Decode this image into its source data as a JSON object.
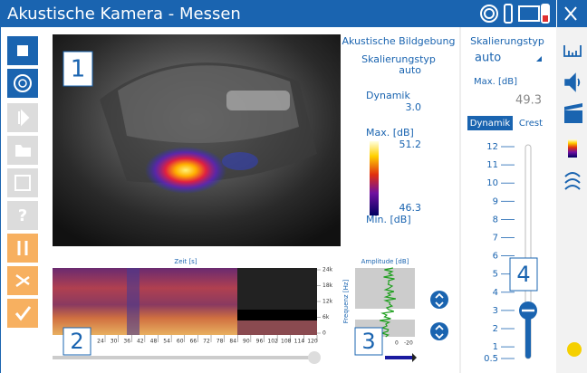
{
  "title_bar": {
    "title": "Akustische Kamera - Messen"
  },
  "image_panel": {
    "label": "1"
  },
  "imaging_info": {
    "heading": "Akustische Bildgebung",
    "scaling_type_label": "Skalierungstyp",
    "scaling_type": "auto",
    "dynamic_label": "Dynamik",
    "dynamic": "3.0",
    "max_label": "Max. [dB]",
    "max": "51.2",
    "min": "46.3",
    "min_label": "Min. [dB]"
  },
  "spectrogram": {
    "label": "2",
    "x_axis_title": "Zeit [s]",
    "x_ticks": [
      "24",
      "30",
      "36",
      "42",
      "48",
      "54",
      "60",
      "66",
      "72",
      "78",
      "84",
      "90",
      "96",
      "102",
      "108",
      "114",
      "120"
    ],
    "y_ticks": [
      "24k",
      "18k",
      "12k",
      "6k",
      "0"
    ],
    "y_axis_title": "Frequenz [Hz]"
  },
  "amplitude": {
    "label": "3",
    "title": "Amplitude [dB]",
    "ticks": [
      "0",
      "-20"
    ]
  },
  "settings": {
    "scaling_type_label": "Skalierungstyp",
    "scaling_type": "auto",
    "max_label": "Max. [dB]",
    "max": "49.3",
    "tabs": [
      "Dynamik",
      "Crest"
    ],
    "scale_ticks": [
      "12",
      "11",
      "10",
      "9",
      "8",
      "7",
      "6",
      "5",
      "4",
      "3",
      "2",
      "1",
      "0.5"
    ],
    "label": "4"
  }
}
